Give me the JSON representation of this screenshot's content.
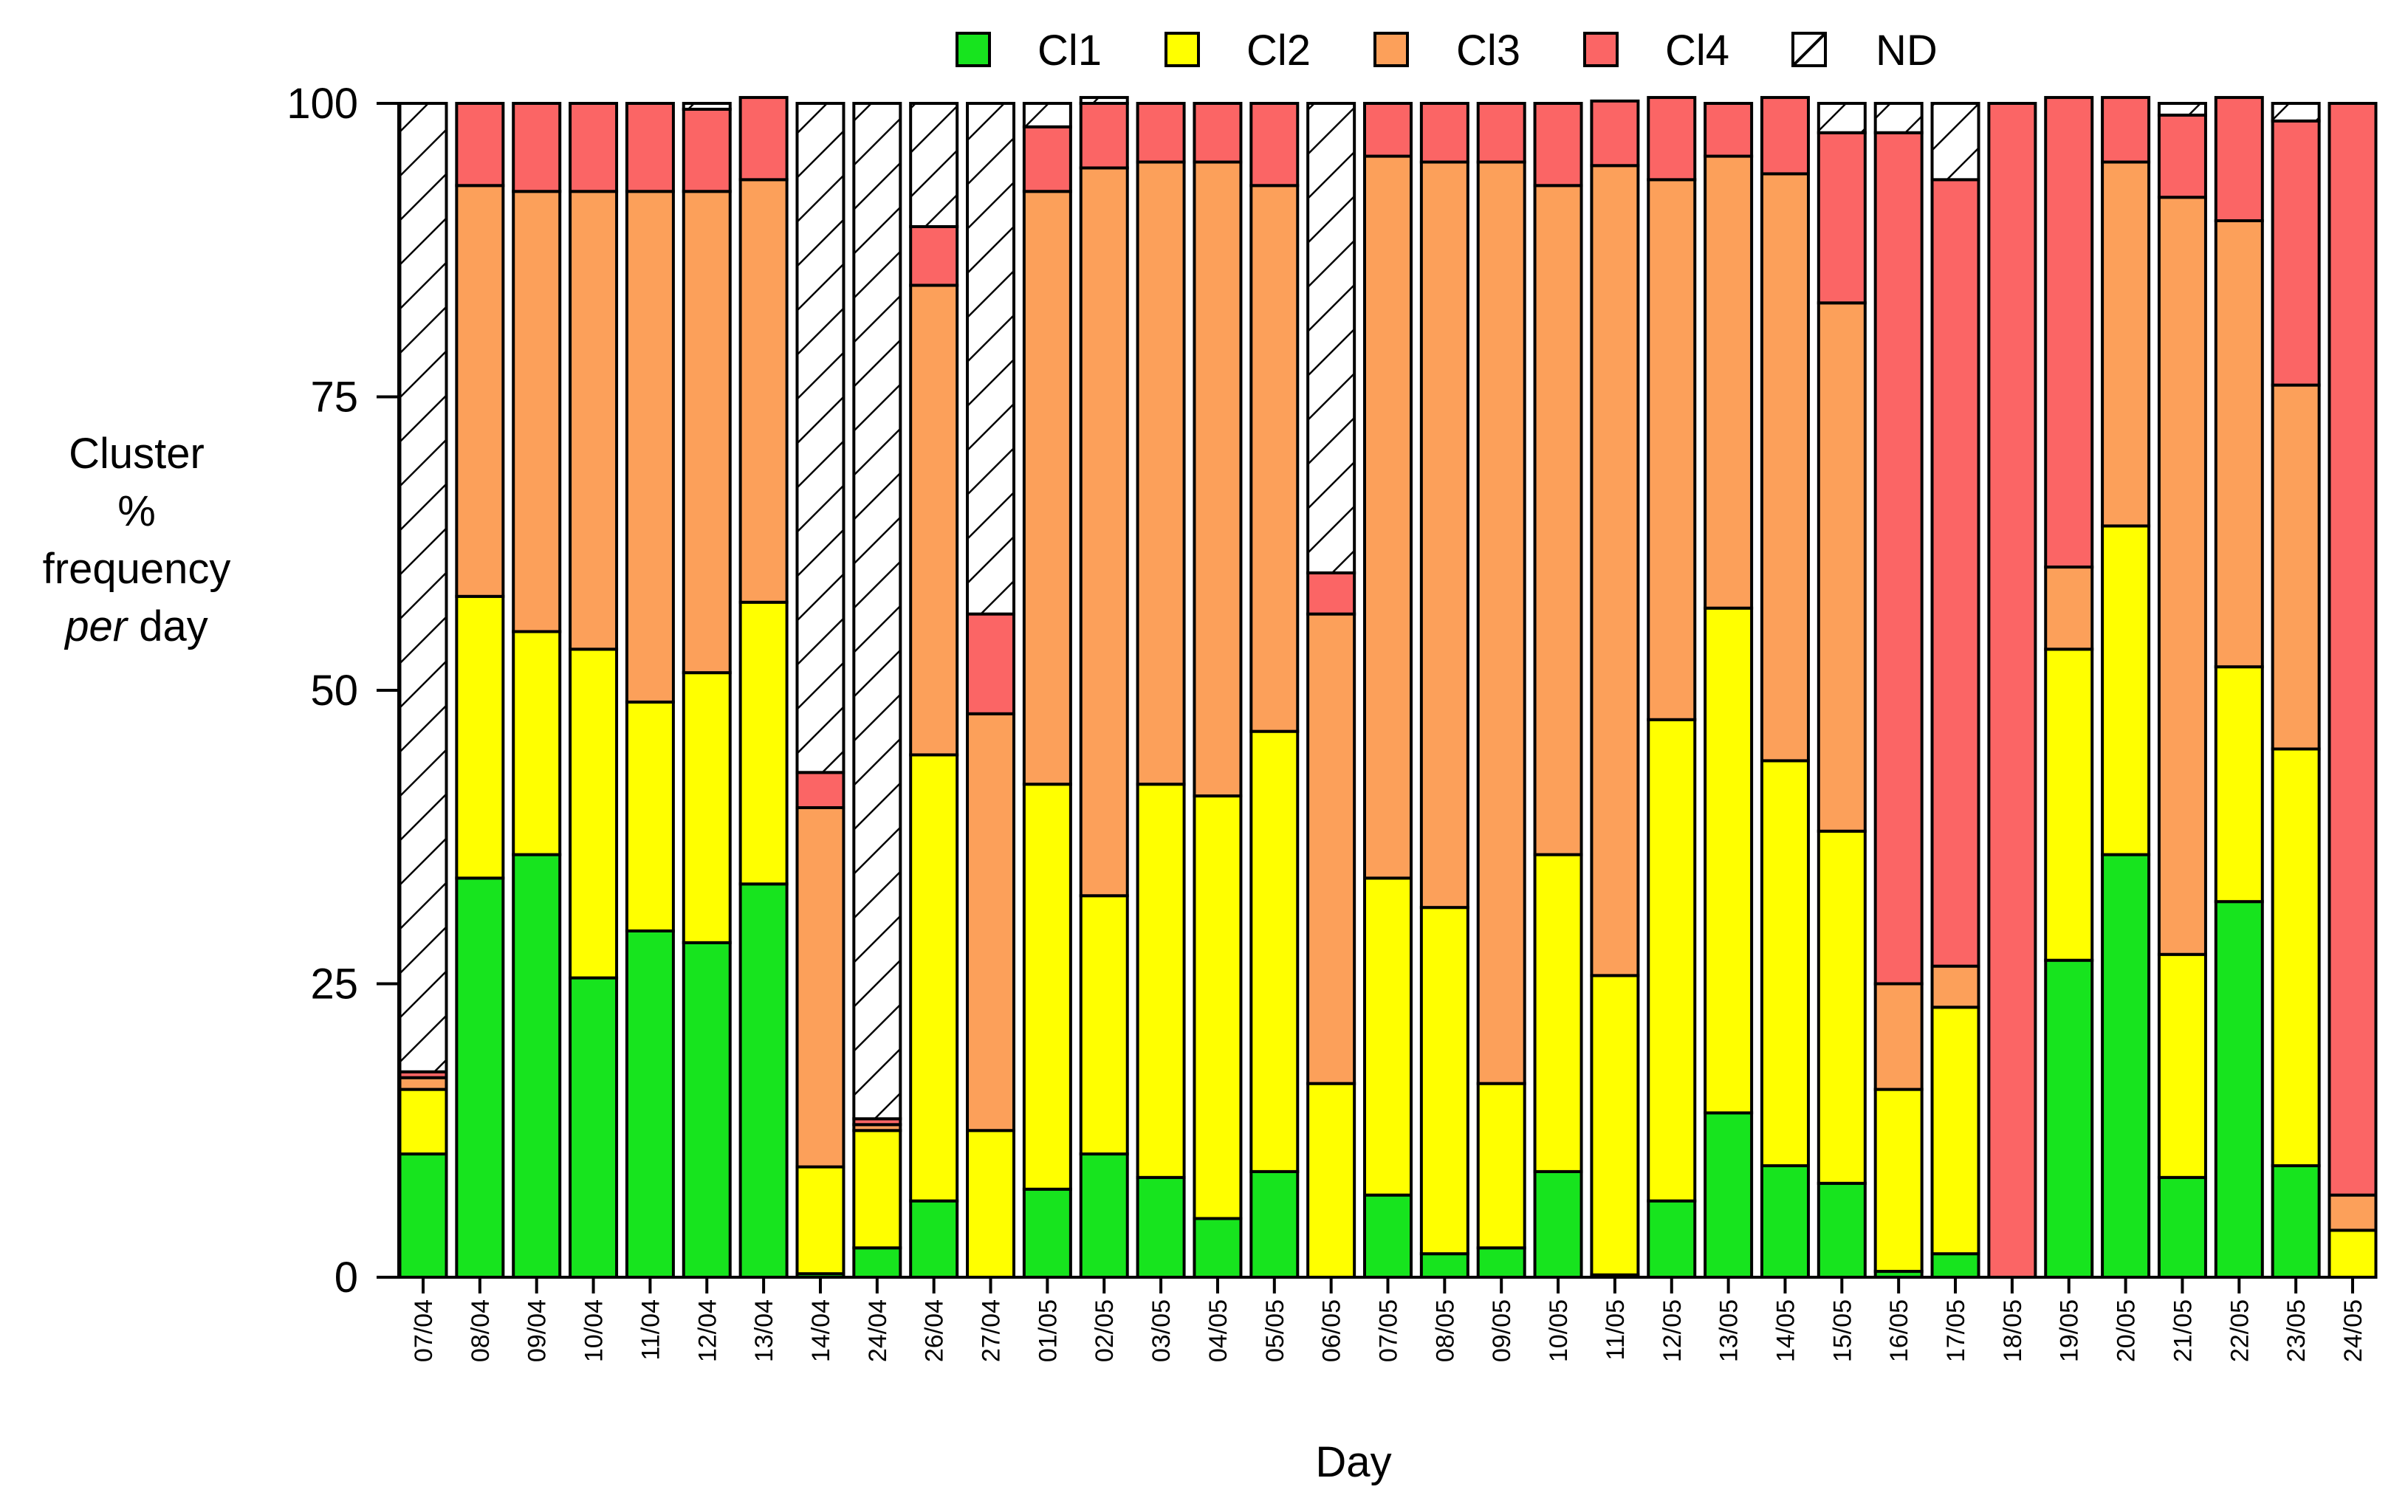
{
  "chart_data": {
    "type": "bar",
    "stacked": true,
    "title": "",
    "xlabel": "Day",
    "ylabel_lines": [
      "Cluster",
      "%",
      "frequency"
    ],
    "ylabel_italic": "per",
    "ylabel_tail": " day",
    "ylim": [
      0,
      100
    ],
    "yticks": [
      "0",
      "25",
      "50",
      "75",
      "100"
    ],
    "legend_position": "top-center",
    "categories": [
      "07/04",
      "08/04",
      "09/04",
      "10/04",
      "11/04",
      "12/04",
      "13/04",
      "14/04",
      "24/04",
      "26/04",
      "27/04",
      "01/05",
      "02/05",
      "03/05",
      "04/05",
      "05/05",
      "06/05",
      "07/05",
      "08/05",
      "09/05",
      "10/05",
      "11/05",
      "12/05",
      "13/05",
      "14/05",
      "15/05",
      "16/05",
      "17/05",
      "18/05",
      "19/05",
      "20/05",
      "21/05",
      "22/05",
      "23/05",
      "24/05"
    ],
    "series": [
      {
        "name": "Cl1",
        "color": "#17e41e",
        "values": [
          10.5,
          34,
          36,
          25.5,
          29.5,
          28.5,
          33.5,
          0.3,
          2.5,
          6.5,
          0,
          7.5,
          10.5,
          8.5,
          5,
          9,
          0,
          7,
          2,
          2.5,
          9,
          0.2,
          6.5,
          14,
          9.5,
          8,
          0.5,
          2,
          0,
          27,
          36,
          8.5,
          32,
          9.5,
          0
        ]
      },
      {
        "name": "Cl2",
        "color": "#ffff00",
        "values": [
          5.5,
          24,
          19,
          28,
          19.5,
          23,
          24,
          9.1,
          10,
          38,
          12.5,
          34.5,
          22,
          33.5,
          36,
          37.5,
          16.5,
          27,
          29.5,
          14,
          27,
          25.5,
          41,
          43,
          34.5,
          30,
          15.5,
          21,
          0,
          26.5,
          28,
          19,
          20,
          35.5,
          4
        ]
      },
      {
        "name": "Cl3",
        "color": "#fca05a",
        "values": [
          1,
          35,
          37.5,
          39,
          43.5,
          41,
          36,
          30.6,
          0.5,
          40,
          35.5,
          50.5,
          62,
          53,
          54,
          46.5,
          40,
          61.5,
          63.5,
          78.5,
          57,
          69,
          46,
          38.5,
          50,
          45,
          9,
          3.5,
          0,
          7,
          31,
          64.5,
          38,
          31,
          3
        ]
      },
      {
        "name": "Cl4",
        "color": "#fb6565",
        "values": [
          0.5,
          7,
          7.5,
          7.5,
          7.5,
          7,
          7,
          3,
          0.5,
          5,
          8.5,
          5.5,
          5.5,
          5,
          5,
          7,
          3.5,
          4.5,
          5,
          5,
          7,
          5.5,
          7,
          4.5,
          6.5,
          14.5,
          72.5,
          67,
          100,
          40,
          5.5,
          7,
          10.5,
          22.5,
          93
        ]
      },
      {
        "name": "ND",
        "color": "#ffffff",
        "pattern": "hatch",
        "values": [
          82.5,
          0,
          0,
          0,
          0,
          0.5,
          0,
          57,
          86.5,
          10.5,
          43.5,
          2,
          0.5,
          0,
          0,
          0,
          40,
          0,
          0,
          0,
          0,
          0,
          0,
          0,
          0,
          2.5,
          2.5,
          6.5,
          0,
          0,
          0,
          1,
          0,
          1.5,
          0
        ]
      }
    ]
  }
}
